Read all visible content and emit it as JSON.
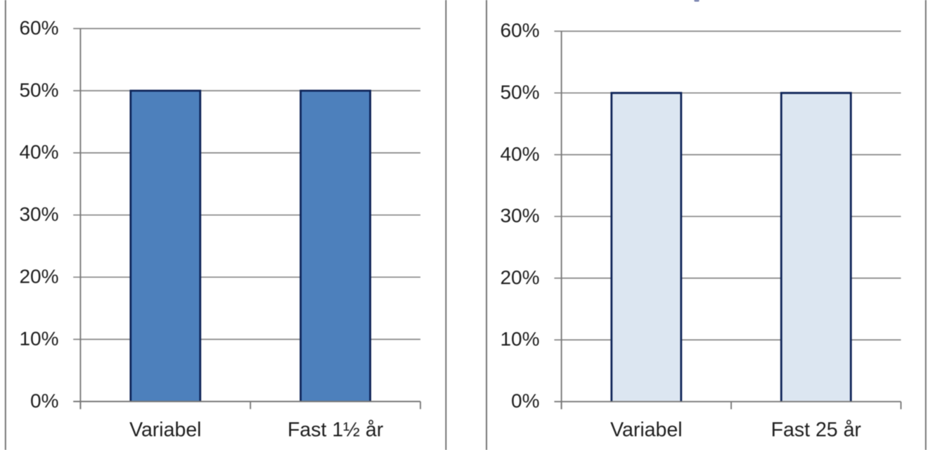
{
  "page": {
    "background": "#ffffff",
    "description": "Two cropped bar chart panels comparing share choosing variable vs fixed rate"
  },
  "chart_data": [
    {
      "type": "bar",
      "panel": "left",
      "categories": [
        "Variabel",
        "Fast 1½ år"
      ],
      "values": [
        50,
        50
      ],
      "title": "",
      "xlabel": "",
      "ylabel": "",
      "ylim": [
        0,
        60
      ],
      "ytick_step": 10,
      "ytick_labels": [
        "0%",
        "10%",
        "20%",
        "30%",
        "40%",
        "50%",
        "60%"
      ],
      "grid": "on",
      "legend": "none",
      "bar_fill": "#4D80BC",
      "bar_border": "#0D2357",
      "has_cutoff_title": false
    },
    {
      "type": "bar",
      "panel": "right",
      "categories": [
        "Variabel",
        "Fast 25 år"
      ],
      "values": [
        50,
        50
      ],
      "title": "",
      "xlabel": "",
      "ylabel": "",
      "ylim": [
        0,
        60
      ],
      "ytick_step": 10,
      "ytick_labels": [
        "0%",
        "10%",
        "20%",
        "30%",
        "40%",
        "50%",
        "60%"
      ],
      "grid": "on",
      "legend": "none",
      "bar_fill": "#DCE6F1",
      "bar_border": "#0D2357",
      "has_cutoff_title": true
    }
  ],
  "styles": {
    "gridline_color": "#878787",
    "axis_color": "#787878",
    "frame_color": "#6f6f6f",
    "text_color": "#1f1f1f",
    "title_fragment_color": "#56649B"
  }
}
